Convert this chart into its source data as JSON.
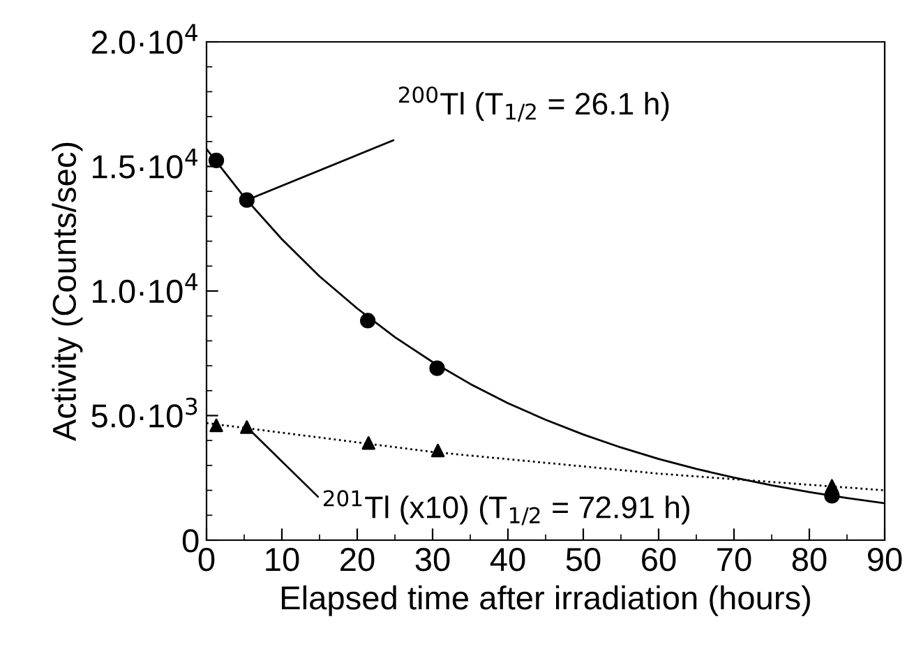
{
  "chart_data": {
    "type": "scatter",
    "xlabel": "Elapsed time after irradiation (hours)",
    "ylabel": "Activity (Counts/sec)",
    "xlim": [
      0,
      90
    ],
    "xticks": [
      0,
      10,
      20,
      30,
      40,
      50,
      60,
      70,
      80,
      90
    ],
    "ylim": [
      0,
      20000
    ],
    "yticks": [
      {
        "value": 0,
        "label": "0"
      },
      {
        "value": 5000,
        "label": "5.0·10$^{3}$"
      },
      {
        "value": 10000,
        "label": "1.0·10$^{4}$"
      },
      {
        "value": 15000,
        "label": "1.5·10$^{4}$"
      },
      {
        "value": 20000,
        "label": "2.0·10$^{4}$"
      }
    ],
    "grid": false,
    "legend": false,
    "series": [
      {
        "marker": "circle",
        "color": "#000000",
        "x": [
          1.3,
          5.35,
          21.4,
          30.6,
          83.0
        ],
        "values": [
          15240,
          13650,
          8810,
          6900,
          1780
        ]
      },
      {
        "type": "line",
        "marker": "none",
        "line_style": "solid",
        "color": "#000000",
        "x": [
          0,
          5,
          10,
          15,
          20,
          25,
          30,
          35,
          40,
          45,
          50,
          55,
          60,
          65,
          70,
          75,
          80,
          85,
          90
        ],
        "values": [
          15700,
          13770,
          12080,
          10590,
          9300,
          8150,
          7150,
          6270,
          5500,
          4830,
          4240,
          3720,
          3260,
          2860,
          2510,
          2200,
          1930,
          1690,
          1480
        ]
      },
      {
        "marker": "triangle",
        "color": "#000000",
        "x": [
          1.3,
          5.35,
          21.5,
          30.7,
          83.0
        ],
        "values": [
          4610,
          4540,
          3900,
          3600,
          2180
        ]
      },
      {
        "type": "line",
        "marker": "none",
        "line_style": "dotted",
        "color": "#000000",
        "x": [
          0,
          30,
          60,
          90
        ],
        "values": [
          4700,
          3540,
          2670,
          2000
        ]
      }
    ],
    "annotations": [
      {
        "text": "$^{200}$Tl (T$_{1/2}$ = 26.1 h)",
        "x": 5.35,
        "y": 13650
      },
      {
        "text": "$^{201}$Tl (x10) (T$_{1/2}$ = 72.91 h)",
        "x": 5.35,
        "y": 4540
      }
    ]
  }
}
